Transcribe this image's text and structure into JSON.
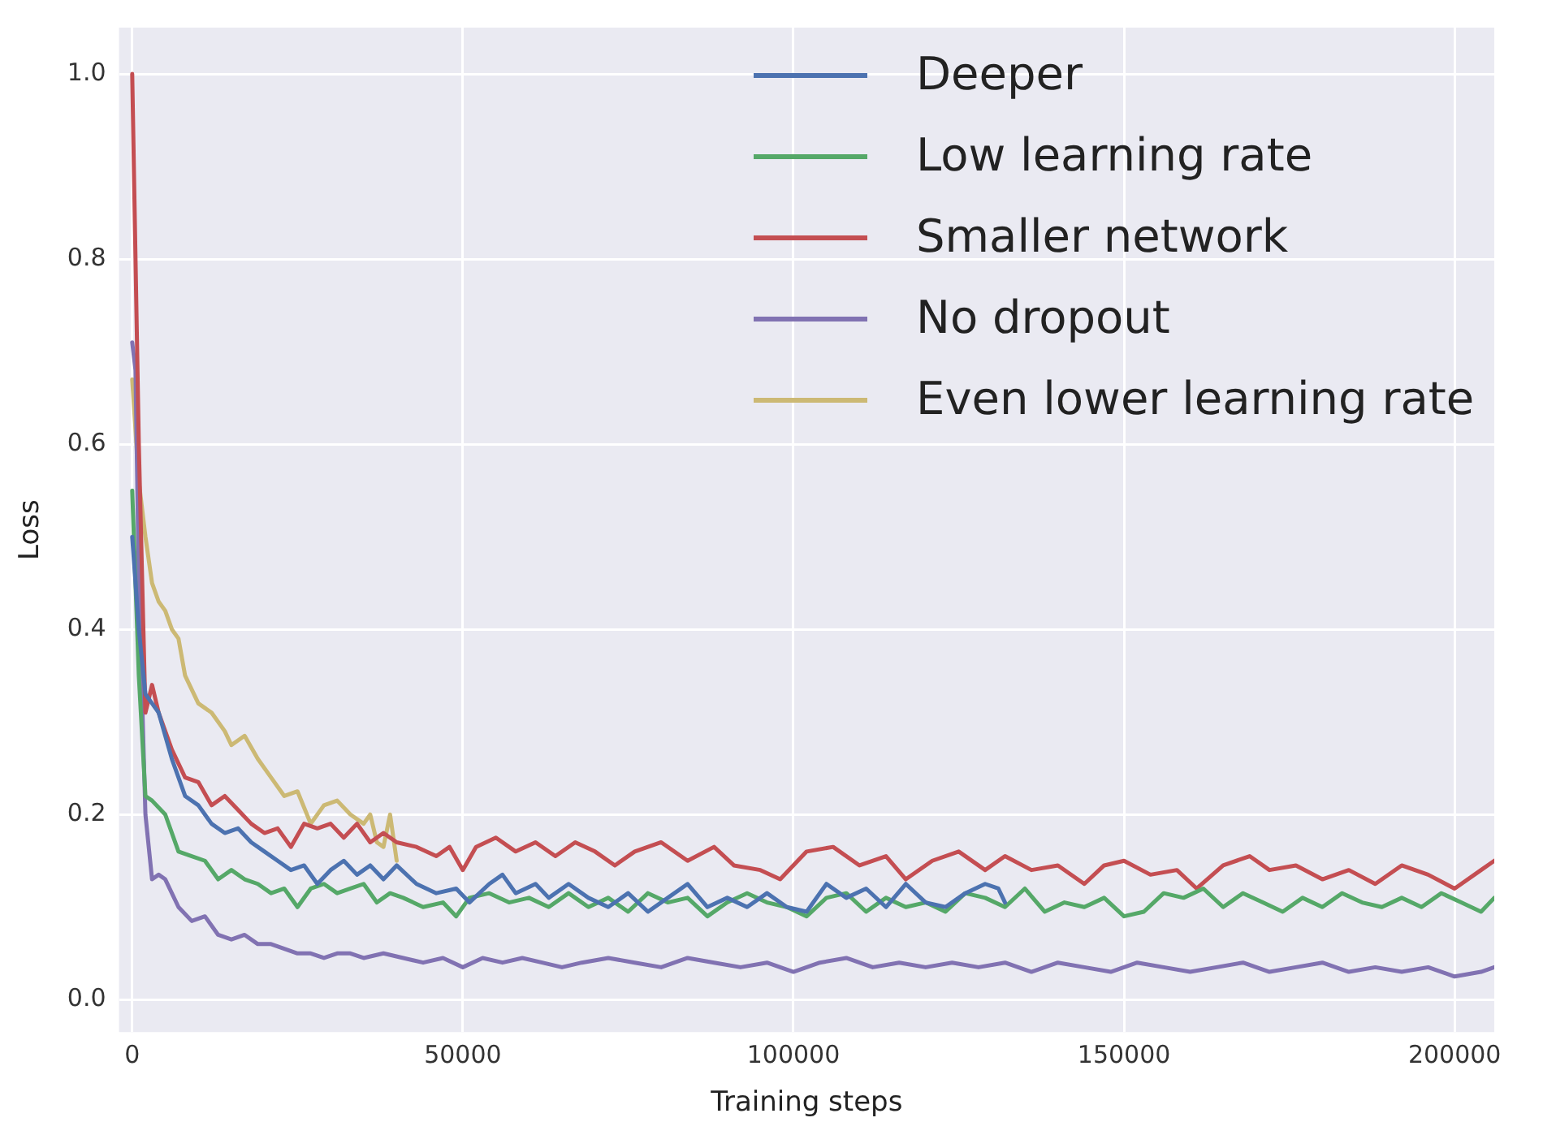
{
  "chart_data": {
    "type": "line",
    "xlabel": "Training steps",
    "ylabel": "Loss",
    "xlim": [
      -2000,
      206000
    ],
    "xticks": [
      0,
      50000,
      100000,
      150000,
      200000
    ],
    "ylim": [
      -0.035,
      1.05
    ],
    "yticks": [
      {
        "value": 0,
        "label": "0.0"
      },
      0.2,
      0.4,
      0.6,
      0.8,
      {
        "value": 1,
        "label": "1.0"
      }
    ],
    "grid": true,
    "legend": "top right",
    "marker": "none",
    "line_style": "solid",
    "series": [
      {
        "name": "Deeper",
        "color": "#4c72b0",
        "x": [
          0,
          1000,
          2000,
          3000,
          4000,
          6000,
          8000,
          10000,
          12000,
          14000,
          16000,
          18000,
          20000,
          22000,
          24000,
          26000,
          28000,
          30000,
          32000,
          34000,
          36000,
          38000,
          40000,
          43000,
          46000,
          49000,
          51000,
          54000,
          56000,
          58000,
          61000,
          63000,
          66000,
          69000,
          72000,
          75000,
          78000,
          81000,
          84000,
          87000,
          90000,
          93000,
          96000,
          99000,
          102000,
          105000,
          108000,
          111000,
          114000,
          117000,
          120000,
          123000,
          126000,
          129000,
          131000,
          132000
        ],
        "values": [
          0.5,
          0.4,
          0.33,
          0.32,
          0.31,
          0.26,
          0.22,
          0.21,
          0.19,
          0.18,
          0.185,
          0.17,
          0.16,
          0.15,
          0.14,
          0.145,
          0.125,
          0.14,
          0.15,
          0.135,
          0.145,
          0.13,
          0.145,
          0.125,
          0.115,
          0.12,
          0.105,
          0.125,
          0.135,
          0.115,
          0.125,
          0.11,
          0.125,
          0.11,
          0.1,
          0.115,
          0.095,
          0.11,
          0.125,
          0.1,
          0.11,
          0.1,
          0.115,
          0.1,
          0.095,
          0.125,
          0.11,
          0.12,
          0.1,
          0.125,
          0.105,
          0.1,
          0.115,
          0.125,
          0.12,
          0.105
        ]
      },
      {
        "name": "Low learning rate",
        "color": "#55a868",
        "x": [
          0,
          1000,
          2000,
          3000,
          5000,
          7000,
          9000,
          11000,
          13000,
          15000,
          17000,
          19000,
          21000,
          23000,
          25000,
          27000,
          29000,
          31000,
          33000,
          35000,
          37000,
          39000,
          41000,
          44000,
          47000,
          49000,
          51000,
          54000,
          57000,
          60000,
          63000,
          66000,
          69000,
          72000,
          75000,
          78000,
          81000,
          84000,
          87000,
          90000,
          93000,
          96000,
          99000,
          102000,
          105000,
          108000,
          111000,
          114000,
          117000,
          120000,
          123000,
          126000,
          129000,
          132000,
          135000,
          138000,
          141000,
          144000,
          147000,
          150000,
          153000,
          156000,
          159000,
          162000,
          165000,
          168000,
          171000,
          174000,
          177000,
          180000,
          183000,
          186000,
          189000,
          192000,
          195000,
          198000,
          201000,
          204000,
          206000
        ],
        "values": [
          0.55,
          0.35,
          0.22,
          0.215,
          0.2,
          0.16,
          0.155,
          0.15,
          0.13,
          0.14,
          0.13,
          0.125,
          0.115,
          0.12,
          0.1,
          0.12,
          0.125,
          0.115,
          0.12,
          0.125,
          0.105,
          0.115,
          0.11,
          0.1,
          0.105,
          0.09,
          0.11,
          0.115,
          0.105,
          0.11,
          0.1,
          0.115,
          0.1,
          0.11,
          0.095,
          0.115,
          0.105,
          0.11,
          0.09,
          0.105,
          0.115,
          0.105,
          0.1,
          0.09,
          0.11,
          0.115,
          0.095,
          0.11,
          0.1,
          0.105,
          0.095,
          0.115,
          0.11,
          0.1,
          0.12,
          0.095,
          0.105,
          0.1,
          0.11,
          0.09,
          0.095,
          0.115,
          0.11,
          0.12,
          0.1,
          0.115,
          0.105,
          0.095,
          0.11,
          0.1,
          0.115,
          0.105,
          0.1,
          0.11,
          0.1,
          0.115,
          0.105,
          0.095,
          0.11
        ]
      },
      {
        "name": "Smaller network",
        "color": "#c44e52",
        "x": [
          0,
          1000,
          2000,
          3000,
          4000,
          6000,
          8000,
          10000,
          12000,
          14000,
          16000,
          18000,
          20000,
          22000,
          24000,
          26000,
          28000,
          30000,
          32000,
          34000,
          36000,
          38000,
          40000,
          43000,
          46000,
          48000,
          50000,
          52000,
          55000,
          58000,
          61000,
          64000,
          67000,
          70000,
          73000,
          76000,
          80000,
          84000,
          88000,
          91000,
          95000,
          98000,
          102000,
          106000,
          110000,
          114000,
          117000,
          121000,
          125000,
          129000,
          132000,
          136000,
          140000,
          144000,
          147000,
          150000,
          154000,
          158000,
          161000,
          165000,
          169000,
          172000,
          176000,
          180000,
          184000,
          188000,
          192000,
          196000,
          200000,
          204000,
          206000
        ],
        "values": [
          1.0,
          0.6,
          0.31,
          0.34,
          0.31,
          0.27,
          0.24,
          0.235,
          0.21,
          0.22,
          0.205,
          0.19,
          0.18,
          0.185,
          0.165,
          0.19,
          0.185,
          0.19,
          0.175,
          0.19,
          0.17,
          0.18,
          0.17,
          0.165,
          0.155,
          0.165,
          0.14,
          0.165,
          0.175,
          0.16,
          0.17,
          0.155,
          0.17,
          0.16,
          0.145,
          0.16,
          0.17,
          0.15,
          0.165,
          0.145,
          0.14,
          0.13,
          0.16,
          0.165,
          0.145,
          0.155,
          0.13,
          0.15,
          0.16,
          0.14,
          0.155,
          0.14,
          0.145,
          0.125,
          0.145,
          0.15,
          0.135,
          0.14,
          0.12,
          0.145,
          0.155,
          0.14,
          0.145,
          0.13,
          0.14,
          0.125,
          0.145,
          0.135,
          0.12,
          0.14,
          0.15
        ]
      },
      {
        "name": "No dropout",
        "color": "#8172b2",
        "x": [
          0,
          500,
          1000,
          2000,
          3000,
          4000,
          5000,
          7000,
          9000,
          11000,
          13000,
          15000,
          17000,
          19000,
          21000,
          23000,
          25000,
          27000,
          29000,
          31000,
          33000,
          35000,
          38000,
          41000,
          44000,
          47000,
          50000,
          53000,
          56000,
          59000,
          62000,
          65000,
          68000,
          72000,
          76000,
          80000,
          84000,
          88000,
          92000,
          96000,
          100000,
          104000,
          108000,
          112000,
          116000,
          120000,
          124000,
          128000,
          132000,
          136000,
          140000,
          144000,
          148000,
          152000,
          156000,
          160000,
          164000,
          168000,
          172000,
          176000,
          180000,
          184000,
          188000,
          192000,
          196000,
          200000,
          204000,
          206000
        ],
        "values": [
          0.71,
          0.68,
          0.45,
          0.2,
          0.13,
          0.135,
          0.13,
          0.1,
          0.085,
          0.09,
          0.07,
          0.065,
          0.07,
          0.06,
          0.06,
          0.055,
          0.05,
          0.05,
          0.045,
          0.05,
          0.05,
          0.045,
          0.05,
          0.045,
          0.04,
          0.045,
          0.035,
          0.045,
          0.04,
          0.045,
          0.04,
          0.035,
          0.04,
          0.045,
          0.04,
          0.035,
          0.045,
          0.04,
          0.035,
          0.04,
          0.03,
          0.04,
          0.045,
          0.035,
          0.04,
          0.035,
          0.04,
          0.035,
          0.04,
          0.03,
          0.04,
          0.035,
          0.03,
          0.04,
          0.035,
          0.03,
          0.035,
          0.04,
          0.03,
          0.035,
          0.04,
          0.03,
          0.035,
          0.03,
          0.035,
          0.025,
          0.03,
          0.035
        ]
      },
      {
        "name": "Even lower learning rate",
        "color": "#ccb974",
        "x": [
          0,
          1000,
          2000,
          3000,
          4000,
          5000,
          6000,
          7000,
          8000,
          10000,
          12000,
          14000,
          15000,
          17000,
          19000,
          21000,
          23000,
          25000,
          27000,
          29000,
          31000,
          33000,
          35000,
          36000,
          37000,
          38000,
          39000,
          40000
        ],
        "values": [
          0.67,
          0.56,
          0.5,
          0.45,
          0.43,
          0.42,
          0.4,
          0.39,
          0.35,
          0.32,
          0.31,
          0.29,
          0.275,
          0.285,
          0.26,
          0.24,
          0.22,
          0.225,
          0.19,
          0.21,
          0.215,
          0.2,
          0.19,
          0.2,
          0.17,
          0.165,
          0.2,
          0.15
        ]
      }
    ]
  }
}
